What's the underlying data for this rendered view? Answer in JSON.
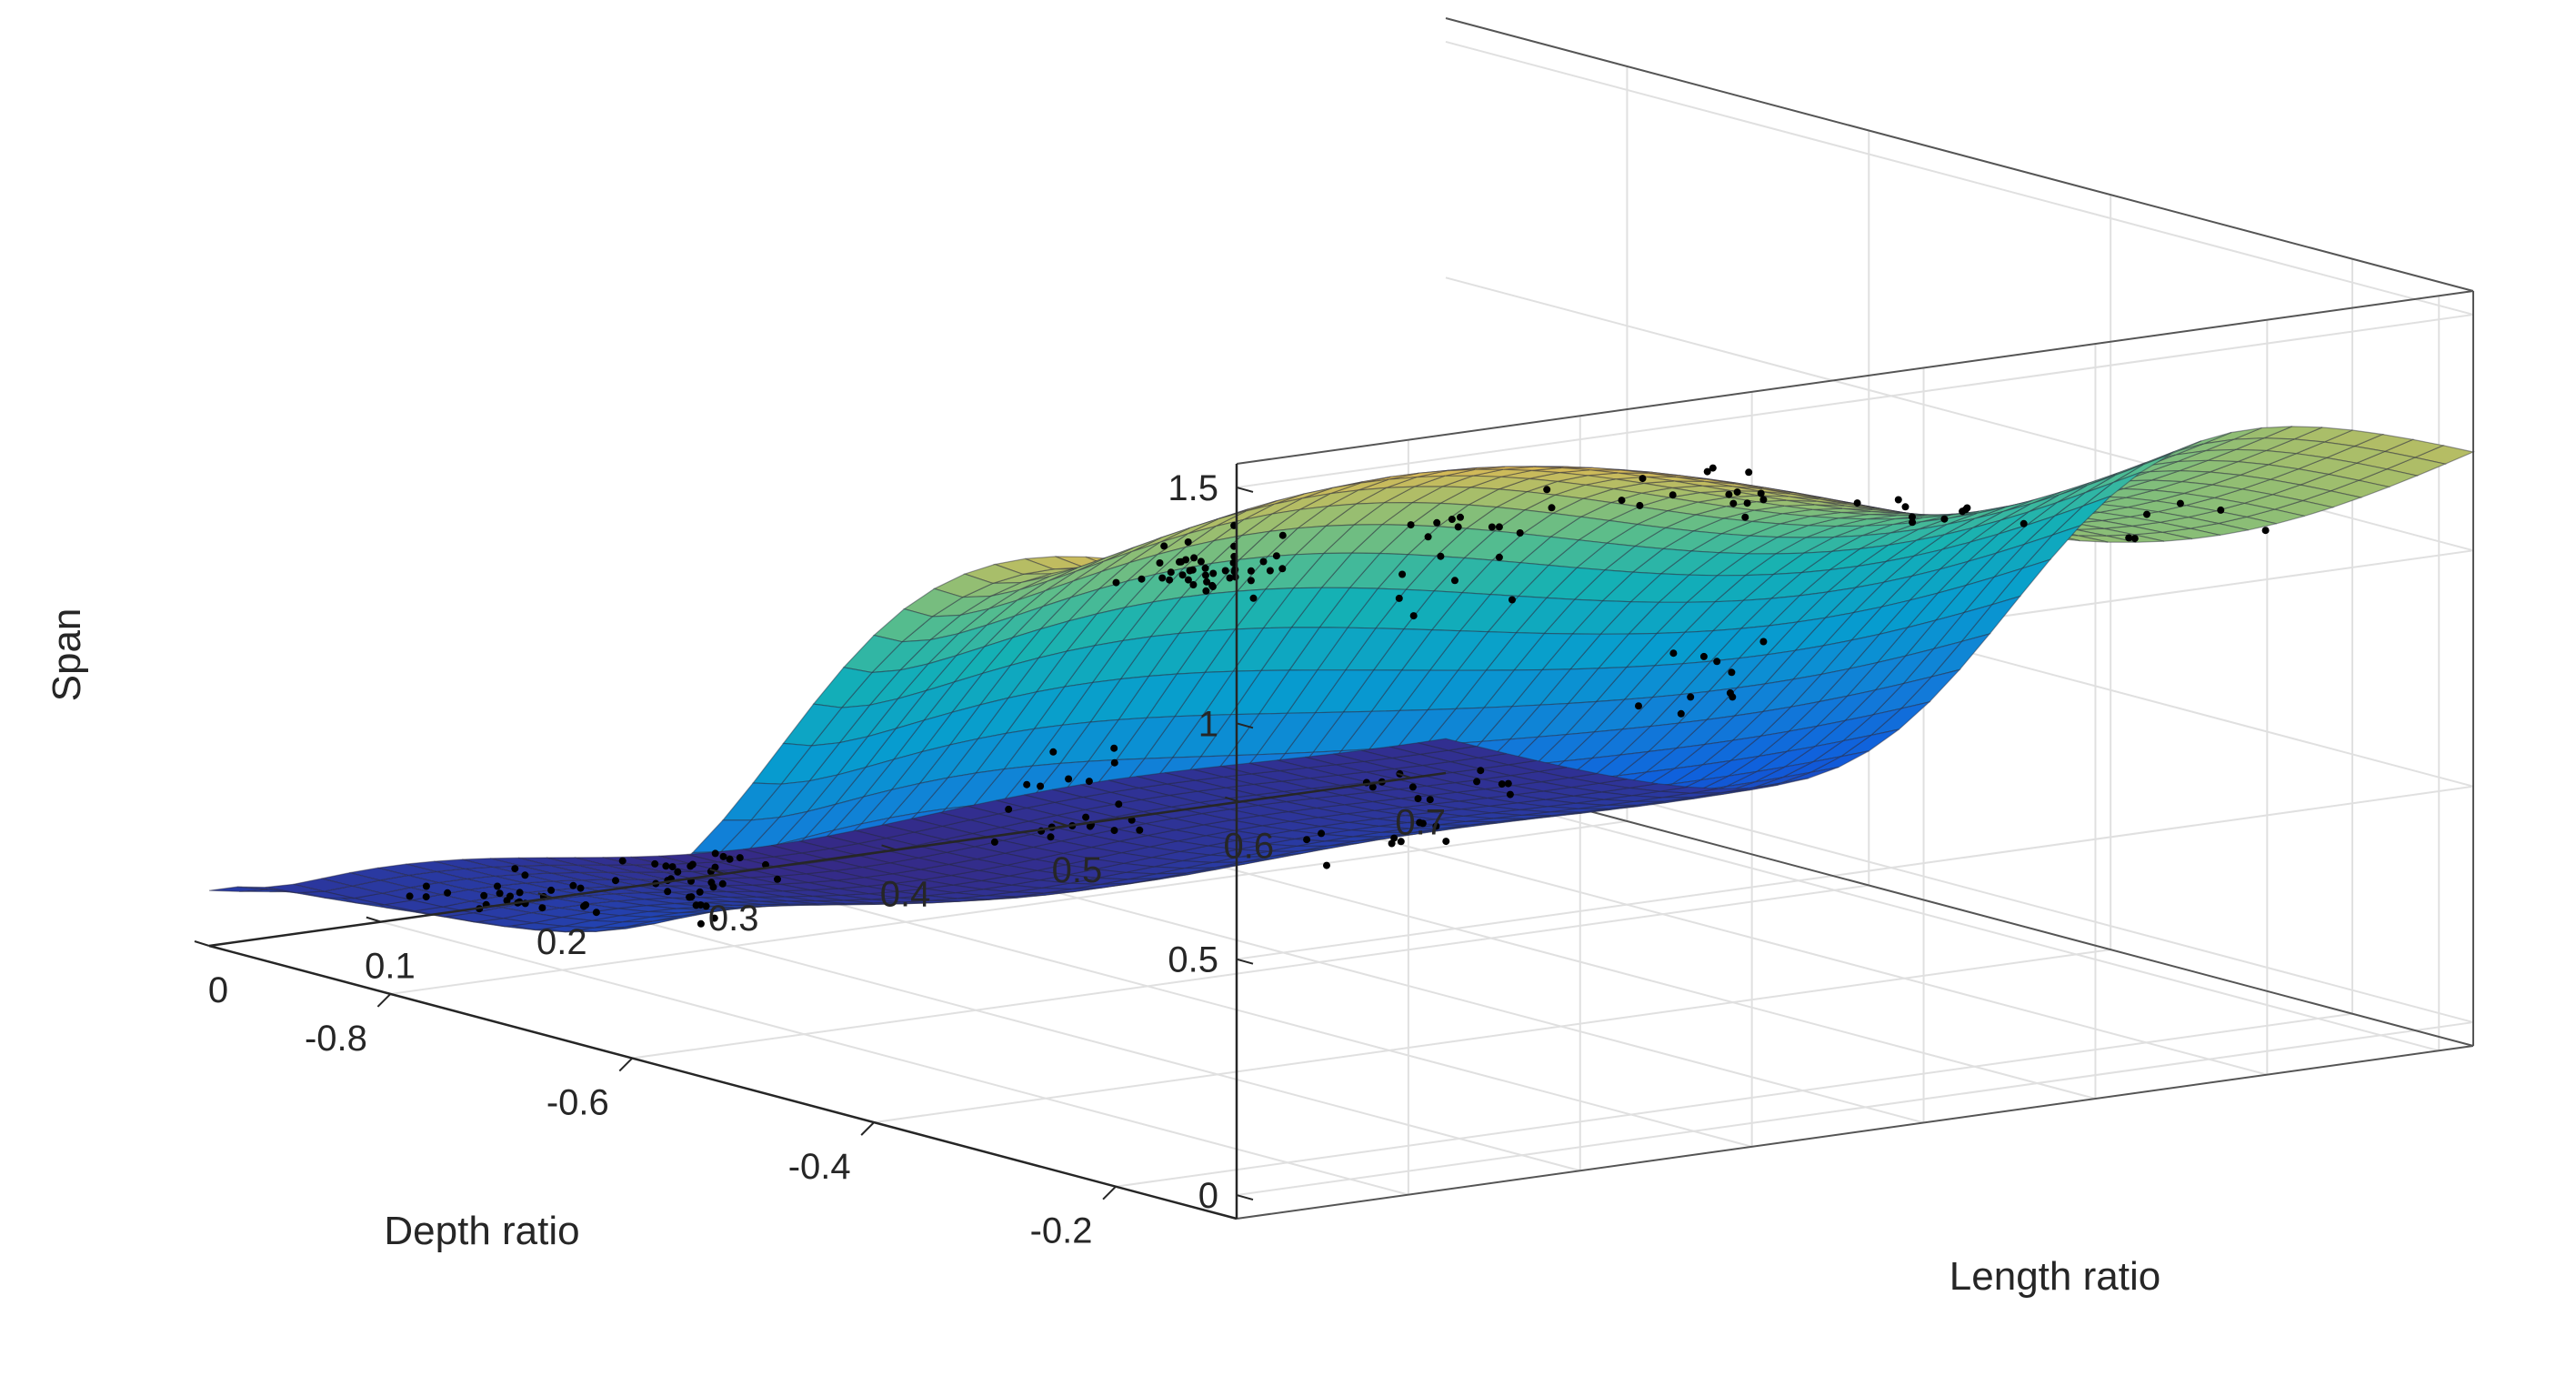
{
  "chart_data": {
    "type": "surface",
    "title": "",
    "xlabel": "Length ratio",
    "ylabel": "Depth ratio",
    "zlabel": "Span",
    "x_ticks": [
      "0",
      "0.1",
      "0.2",
      "0.3",
      "0.4",
      "0.5",
      "0.6",
      "0.7"
    ],
    "y_ticks": [
      "-0.2",
      "-0.4",
      "-0.6",
      "-0.8"
    ],
    "z_ticks": [
      "0",
      "0.5",
      "1",
      "1.5"
    ],
    "xlim": [
      0,
      0.72
    ],
    "ylim": [
      -0.95,
      -0.1
    ],
    "zlim": [
      -0.05,
      1.55
    ],
    "grid": true,
    "colormap": "parula",
    "colors": {
      "low": "#352a87",
      "mid": "#12b2a0",
      "high": "#f9fb0e",
      "points": "#000000",
      "box": "#262626",
      "grid": "#e0e0e0"
    },
    "surface_description_points": [
      {
        "x": 0.0,
        "y": -0.12,
        "z": 1.25
      },
      {
        "x": 0.3,
        "y": -0.12,
        "z": 1.4
      },
      {
        "x": 0.5,
        "y": -0.12,
        "z": 1.3
      },
      {
        "x": 0.72,
        "y": -0.12,
        "z": 1.2
      },
      {
        "x": 0.0,
        "y": -0.95,
        "z": 0.05
      },
      {
        "x": 0.72,
        "y": -0.95,
        "z": 0.0
      }
    ]
  }
}
